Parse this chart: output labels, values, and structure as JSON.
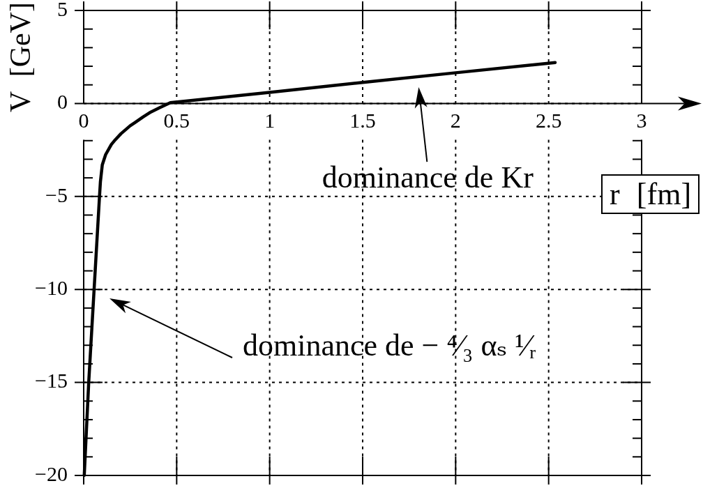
{
  "chart_data": {
    "type": "line",
    "xlabel": "r [fm]",
    "ylabel": "V [GeV]",
    "x": [
      0.003,
      0.027,
      0.056,
      0.085,
      0.09,
      0.1,
      0.118,
      0.149,
      0.17,
      0.2,
      0.25,
      0.274,
      0.32,
      0.361,
      0.41,
      0.466,
      1,
      1.5,
      2,
      2.535
    ],
    "values": [
      -20,
      -15,
      -10,
      -5,
      -4.2,
      -3.3,
      -2.75,
      -2.2,
      -1.95,
      -1.63,
      -1.2,
      -1.04,
      -0.72,
      -0.46,
      -0.22,
      0.04,
      0.6,
      1.13,
      1.65,
      2.2
    ],
    "color": "#000000",
    "marker": "none",
    "xlim": [
      0,
      3
    ],
    "ylim": [
      -20,
      5
    ],
    "xticks": [
      0,
      0.5,
      1,
      1.5,
      2,
      2.5,
      3
    ],
    "yticks": [
      {
        "value": -20,
        "label": "−20"
      },
      {
        "value": -19,
        "label": null
      },
      {
        "value": -18,
        "label": null
      },
      {
        "value": -17,
        "label": null
      },
      {
        "value": -16,
        "label": null
      },
      {
        "value": -15,
        "label": "−15"
      },
      {
        "value": -14,
        "label": null
      },
      {
        "value": -13,
        "label": null
      },
      {
        "value": -12,
        "label": null
      },
      {
        "value": -11,
        "label": null
      },
      {
        "value": -10,
        "label": "−10"
      },
      {
        "value": -9,
        "label": null
      },
      {
        "value": -8,
        "label": null
      },
      {
        "value": -7,
        "label": null
      },
      {
        "value": -6,
        "label": null
      },
      {
        "value": -5,
        "label": "−5"
      },
      {
        "value": -4,
        "label": null
      },
      {
        "value": -3,
        "label": null
      },
      {
        "value": -2,
        "label": null
      },
      0,
      {
        "value": 1,
        "label": null
      },
      {
        "value": 2,
        "label": null
      },
      {
        "value": 3,
        "label": null
      },
      {
        "value": 4,
        "label": null
      },
      5
    ],
    "grid": true,
    "annotations": [
      {
        "text": "dominance de Kr",
        "x": 1.79,
        "y": 1.4
      },
      "dominance de − ⁴⁄₃ αₛ ¹⁄ᵣ"
    ]
  }
}
